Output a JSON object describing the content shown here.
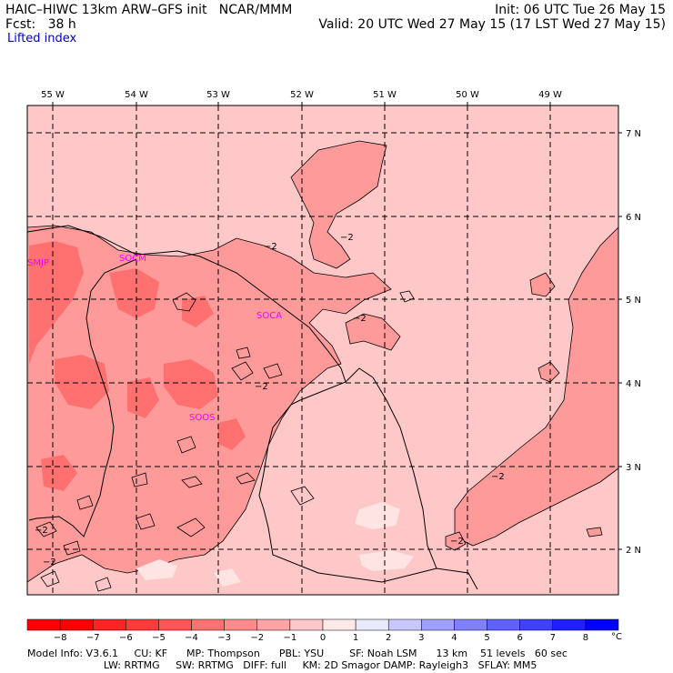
{
  "header": {
    "line1_left": "HAIC–HIWC 13km ARW–GFS init   NCAR/MMM",
    "line1_right": "Init: 06 UTC Tue 26 May 15",
    "line2_left": "Fcst:   38 h",
    "line2_right": "Valid: 20 UTC Wed 27 May 15 (17 LST Wed 27 May 15)",
    "field": "Lifted index"
  },
  "map": {
    "lon_labels": [
      "55 W",
      "54 W",
      "53 W",
      "52 W",
      "51 W",
      "50 W",
      "49 W"
    ],
    "lat_labels": [
      "7 N",
      "6 N",
      "5 N",
      "4 N",
      "3 N",
      "2 N"
    ],
    "stations": [
      "SMJP",
      "SOCM",
      "SOCA",
      "SOOS"
    ],
    "contour_label": "−2",
    "colors": {
      "background": "#ffc8c8",
      "moderate": "#ff9a9a",
      "strong": "#ff7070",
      "near_zero": "#ffe4e4",
      "station": "#ff00ff"
    }
  },
  "colorbar": {
    "labels": [
      "−8",
      "−7",
      "−6",
      "−5",
      "−4",
      "−3",
      "−2",
      "−1",
      "0",
      "1",
      "2",
      "3",
      "4",
      "5",
      "6",
      "7",
      "8"
    ],
    "unit": "°C",
    "colors": [
      "#ff0000",
      "#ff2424",
      "#ff3c3c",
      "#ff5555",
      "#ff7070",
      "#ff8a8a",
      "#ffa4a4",
      "#ffc8c8",
      "#ffe8e8",
      "#e8e8ff",
      "#c8c8ff",
      "#a0a0ff",
      "#8080ff",
      "#6060ff",
      "#4040ff",
      "#2020ff",
      "#0000ff"
    ]
  },
  "footer": {
    "line1": "Model Info: V3.6.1     CU: KF      MP: Thompson      PBL: YSU        SF: Noah LSM      13 km    51 levels   60 sec",
    "line2": "                        LW: RRTMG     SW: RRTMG   DIFF: full     KM: 2D Smagor DAMP: Rayleigh3   SFLAY: MM5"
  }
}
